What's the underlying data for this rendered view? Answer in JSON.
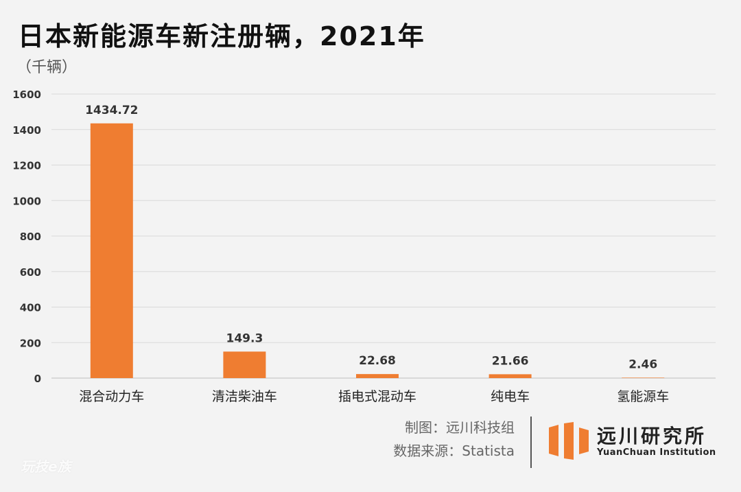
{
  "chart_data": {
    "type": "bar",
    "title": "日本新能源车新注册辆，2021年",
    "ylabel": "（千辆）",
    "categories": [
      "混合动力车",
      "清洁柴油车",
      "插电式混动车",
      "纯电车",
      "氢能源车"
    ],
    "values": [
      1434.72,
      149.3,
      22.68,
      21.66,
      2.46
    ],
    "data_labels": [
      "1434.72",
      "149.3",
      "22.68",
      "21.66",
      "2.46"
    ],
    "ylim": [
      0,
      1600
    ],
    "yticks": [
      0,
      200,
      400,
      600,
      800,
      1000,
      1200,
      1400,
      1600
    ],
    "grid": true,
    "bar_color": "#ef7d31"
  },
  "credits": {
    "made_by": "制图：远川科技组",
    "source": "数据来源：Statista"
  },
  "logo": {
    "name_cn": "远川研究所",
    "name_en": "YuanChuan Institution",
    "color": "#ef7d31"
  },
  "watermark": "玩技e族"
}
